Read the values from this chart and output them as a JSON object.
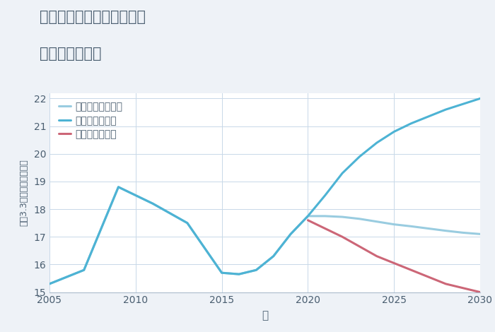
{
  "title_line1": "三重県四日市市坂部が丘の",
  "title_line2": "土地の価格推移",
  "xlabel": "年",
  "ylabel": "坪（3.3㎡）単価（万円）",
  "bg_color": "#eef2f7",
  "plot_bg_color": "#ffffff",
  "grid_color": "#c8d8e8",
  "xlim": [
    2005,
    2030
  ],
  "ylim": [
    15,
    22.2
  ],
  "yticks": [
    15,
    16,
    17,
    18,
    19,
    20,
    21,
    22
  ],
  "xticks": [
    2005,
    2010,
    2015,
    2020,
    2025,
    2030
  ],
  "good_scenario": {
    "x": [
      2005,
      2007,
      2009,
      2011,
      2013,
      2015,
      2016,
      2017,
      2018,
      2019,
      2020,
      2021,
      2022,
      2023,
      2024,
      2025,
      2026,
      2027,
      2028,
      2029,
      2030
    ],
    "y": [
      15.3,
      15.8,
      18.8,
      18.2,
      17.5,
      15.7,
      15.65,
      15.8,
      16.3,
      17.1,
      17.75,
      18.5,
      19.3,
      19.9,
      20.4,
      20.8,
      21.1,
      21.35,
      21.6,
      21.8,
      22.0
    ],
    "color": "#4db3d4",
    "linewidth": 2.2,
    "label": "グッドシナリオ"
  },
  "bad_scenario": {
    "x": [
      2020,
      2022,
      2024,
      2026,
      2028,
      2030
    ],
    "y": [
      17.6,
      17.0,
      16.3,
      15.8,
      15.3,
      15.0
    ],
    "color": "#cc6677",
    "linewidth": 2.2,
    "label": "バッドシナリオ"
  },
  "normal_scenario": {
    "x": [
      2005,
      2007,
      2009,
      2011,
      2013,
      2015,
      2016,
      2017,
      2018,
      2019,
      2020,
      2021,
      2022,
      2023,
      2024,
      2025,
      2026,
      2027,
      2028,
      2029,
      2030
    ],
    "y": [
      15.3,
      15.8,
      18.8,
      18.2,
      17.5,
      15.7,
      15.65,
      15.8,
      16.3,
      17.1,
      17.75,
      17.75,
      17.72,
      17.65,
      17.55,
      17.45,
      17.38,
      17.3,
      17.22,
      17.15,
      17.1
    ],
    "color": "#99cce0",
    "linewidth": 2.2,
    "label": "ノーマルシナリオ"
  },
  "title_color": "#4a5e70",
  "axis_color": "#4a5e70",
  "tick_color": "#4a5e70",
  "legend_text_color": "#4a5e70"
}
